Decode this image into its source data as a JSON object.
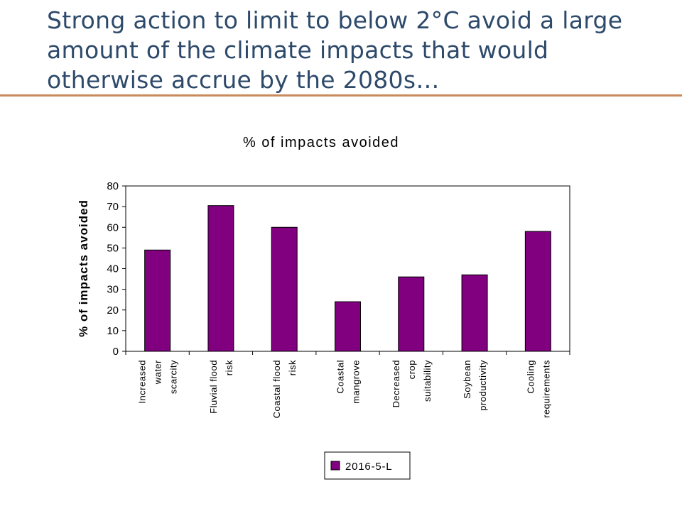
{
  "slide": {
    "title": "Strong action to limit to below 2°C avoid a large amount of the climate impacts that would otherwise accrue by the 2080s…"
  },
  "colors": {
    "bar": "#800080",
    "title": "#2e4a6b",
    "rule": "#c98a5c"
  },
  "chart_data": {
    "type": "bar",
    "title": "% of impacts avoided",
    "ylabel": "% of impacts avoided",
    "xlabel": "",
    "ylim": [
      0,
      80
    ],
    "yticks": [
      0,
      10,
      20,
      30,
      40,
      50,
      60,
      70,
      80
    ],
    "grid": false,
    "legend_position": "bottom",
    "categories": [
      [
        "Increased",
        "water",
        "scarcity"
      ],
      [
        "Fluvial flood",
        "risk"
      ],
      [
        "Coastal flood",
        "risk"
      ],
      [
        "Coastal",
        "mangrove"
      ],
      [
        "Decreased",
        "crop",
        "suitability"
      ],
      [
        "Soybean",
        "productivity"
      ],
      [
        "Cooling",
        "requirements"
      ]
    ],
    "series": [
      {
        "name": "2016-5-L",
        "values": [
          49,
          70.5,
          60,
          24,
          36,
          37,
          58
        ]
      }
    ]
  }
}
